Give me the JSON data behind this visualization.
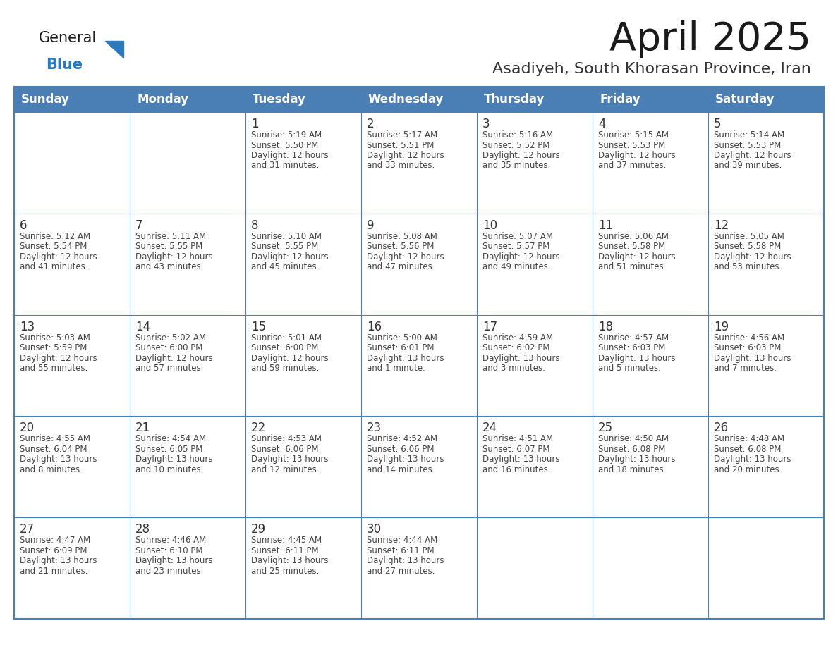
{
  "title": "April 2025",
  "subtitle": "Asadiyeh, South Khorasan Province, Iran",
  "days_of_week": [
    "Sunday",
    "Monday",
    "Tuesday",
    "Wednesday",
    "Thursday",
    "Friday",
    "Saturday"
  ],
  "header_bg": "#4a7fb5",
  "header_text": "#ffffff",
  "cell_bg_white": "#ffffff",
  "cell_border_color": "#4a7fb5",
  "title_color": "#1a1a1a",
  "subtitle_color": "#333333",
  "day_number_color": "#333333",
  "cell_text_color": "#444444",
  "logo_general_color": "#1a1a1a",
  "logo_blue_color": "#2a7abf",
  "calendar": [
    [
      {
        "day": null,
        "sunrise": null,
        "sunset": null,
        "daylight": null
      },
      {
        "day": null,
        "sunrise": null,
        "sunset": null,
        "daylight": null
      },
      {
        "day": 1,
        "sunrise": "5:19 AM",
        "sunset": "5:50 PM",
        "daylight_line1": "Daylight: 12 hours",
        "daylight_line2": "and 31 minutes."
      },
      {
        "day": 2,
        "sunrise": "5:17 AM",
        "sunset": "5:51 PM",
        "daylight_line1": "Daylight: 12 hours",
        "daylight_line2": "and 33 minutes."
      },
      {
        "day": 3,
        "sunrise": "5:16 AM",
        "sunset": "5:52 PM",
        "daylight_line1": "Daylight: 12 hours",
        "daylight_line2": "and 35 minutes."
      },
      {
        "day": 4,
        "sunrise": "5:15 AM",
        "sunset": "5:53 PM",
        "daylight_line1": "Daylight: 12 hours",
        "daylight_line2": "and 37 minutes."
      },
      {
        "day": 5,
        "sunrise": "5:14 AM",
        "sunset": "5:53 PM",
        "daylight_line1": "Daylight: 12 hours",
        "daylight_line2": "and 39 minutes."
      }
    ],
    [
      {
        "day": 6,
        "sunrise": "5:12 AM",
        "sunset": "5:54 PM",
        "daylight_line1": "Daylight: 12 hours",
        "daylight_line2": "and 41 minutes."
      },
      {
        "day": 7,
        "sunrise": "5:11 AM",
        "sunset": "5:55 PM",
        "daylight_line1": "Daylight: 12 hours",
        "daylight_line2": "and 43 minutes."
      },
      {
        "day": 8,
        "sunrise": "5:10 AM",
        "sunset": "5:55 PM",
        "daylight_line1": "Daylight: 12 hours",
        "daylight_line2": "and 45 minutes."
      },
      {
        "day": 9,
        "sunrise": "5:08 AM",
        "sunset": "5:56 PM",
        "daylight_line1": "Daylight: 12 hours",
        "daylight_line2": "and 47 minutes."
      },
      {
        "day": 10,
        "sunrise": "5:07 AM",
        "sunset": "5:57 PM",
        "daylight_line1": "Daylight: 12 hours",
        "daylight_line2": "and 49 minutes."
      },
      {
        "day": 11,
        "sunrise": "5:06 AM",
        "sunset": "5:58 PM",
        "daylight_line1": "Daylight: 12 hours",
        "daylight_line2": "and 51 minutes."
      },
      {
        "day": 12,
        "sunrise": "5:05 AM",
        "sunset": "5:58 PM",
        "daylight_line1": "Daylight: 12 hours",
        "daylight_line2": "and 53 minutes."
      }
    ],
    [
      {
        "day": 13,
        "sunrise": "5:03 AM",
        "sunset": "5:59 PM",
        "daylight_line1": "Daylight: 12 hours",
        "daylight_line2": "and 55 minutes."
      },
      {
        "day": 14,
        "sunrise": "5:02 AM",
        "sunset": "6:00 PM",
        "daylight_line1": "Daylight: 12 hours",
        "daylight_line2": "and 57 minutes."
      },
      {
        "day": 15,
        "sunrise": "5:01 AM",
        "sunset": "6:00 PM",
        "daylight_line1": "Daylight: 12 hours",
        "daylight_line2": "and 59 minutes."
      },
      {
        "day": 16,
        "sunrise": "5:00 AM",
        "sunset": "6:01 PM",
        "daylight_line1": "Daylight: 13 hours",
        "daylight_line2": "and 1 minute."
      },
      {
        "day": 17,
        "sunrise": "4:59 AM",
        "sunset": "6:02 PM",
        "daylight_line1": "Daylight: 13 hours",
        "daylight_line2": "and 3 minutes."
      },
      {
        "day": 18,
        "sunrise": "4:57 AM",
        "sunset": "6:03 PM",
        "daylight_line1": "Daylight: 13 hours",
        "daylight_line2": "and 5 minutes."
      },
      {
        "day": 19,
        "sunrise": "4:56 AM",
        "sunset": "6:03 PM",
        "daylight_line1": "Daylight: 13 hours",
        "daylight_line2": "and 7 minutes."
      }
    ],
    [
      {
        "day": 20,
        "sunrise": "4:55 AM",
        "sunset": "6:04 PM",
        "daylight_line1": "Daylight: 13 hours",
        "daylight_line2": "and 8 minutes."
      },
      {
        "day": 21,
        "sunrise": "4:54 AM",
        "sunset": "6:05 PM",
        "daylight_line1": "Daylight: 13 hours",
        "daylight_line2": "and 10 minutes."
      },
      {
        "day": 22,
        "sunrise": "4:53 AM",
        "sunset": "6:06 PM",
        "daylight_line1": "Daylight: 13 hours",
        "daylight_line2": "and 12 minutes."
      },
      {
        "day": 23,
        "sunrise": "4:52 AM",
        "sunset": "6:06 PM",
        "daylight_line1": "Daylight: 13 hours",
        "daylight_line2": "and 14 minutes."
      },
      {
        "day": 24,
        "sunrise": "4:51 AM",
        "sunset": "6:07 PM",
        "daylight_line1": "Daylight: 13 hours",
        "daylight_line2": "and 16 minutes."
      },
      {
        "day": 25,
        "sunrise": "4:50 AM",
        "sunset": "6:08 PM",
        "daylight_line1": "Daylight: 13 hours",
        "daylight_line2": "and 18 minutes."
      },
      {
        "day": 26,
        "sunrise": "4:48 AM",
        "sunset": "6:08 PM",
        "daylight_line1": "Daylight: 13 hours",
        "daylight_line2": "and 20 minutes."
      }
    ],
    [
      {
        "day": 27,
        "sunrise": "4:47 AM",
        "sunset": "6:09 PM",
        "daylight_line1": "Daylight: 13 hours",
        "daylight_line2": "and 21 minutes."
      },
      {
        "day": 28,
        "sunrise": "4:46 AM",
        "sunset": "6:10 PM",
        "daylight_line1": "Daylight: 13 hours",
        "daylight_line2": "and 23 minutes."
      },
      {
        "day": 29,
        "sunrise": "4:45 AM",
        "sunset": "6:11 PM",
        "daylight_line1": "Daylight: 13 hours",
        "daylight_line2": "and 25 minutes."
      },
      {
        "day": 30,
        "sunrise": "4:44 AM",
        "sunset": "6:11 PM",
        "daylight_line1": "Daylight: 13 hours",
        "daylight_line2": "and 27 minutes."
      },
      {
        "day": null,
        "sunrise": null,
        "sunset": null,
        "daylight_line1": null,
        "daylight_line2": null
      },
      {
        "day": null,
        "sunrise": null,
        "sunset": null,
        "daylight_line1": null,
        "daylight_line2": null
      },
      {
        "day": null,
        "sunrise": null,
        "sunset": null,
        "daylight_line1": null,
        "daylight_line2": null
      }
    ]
  ]
}
